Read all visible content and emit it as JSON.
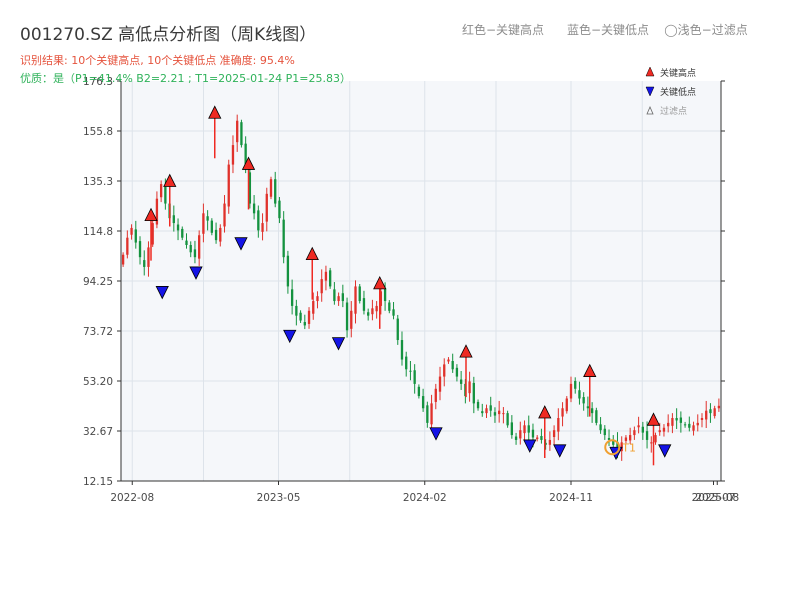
{
  "header": {
    "title": "001270.SZ 高低点分析图（周K线图）",
    "top_note": "红色−关键高点      蓝色−关键低点    ◯浅色−过滤点",
    "result_line": "识别结果: 10个关键高点, 10个关键低点   准确度: 95.4%",
    "quality_line": "优质：是（P1=41.4%  B2=2.21 ; T1=2025-01-24 P1=25.83）"
  },
  "legend": {
    "high": "关键高点",
    "low": "关键低点",
    "filtered": "过滤点",
    "position": "top-right"
  },
  "colors": {
    "up": "#e0312b",
    "down": "#14923f",
    "high_marker": "#ef2a23",
    "low_marker": "#1414e6",
    "filtered_marker": "#f0a030",
    "plot_bg": "#f5f7fa",
    "grid": "#dde3ea"
  },
  "chart_data": {
    "type": "candlestick",
    "title": "001270.SZ 高低点分析图（周K线图）",
    "y_ticks": [
      "176.3",
      "155.8",
      "135.3",
      "114.8",
      "94.25",
      "73.72",
      "53.20",
      "32.67",
      "12.15"
    ],
    "ylim": [
      12.15,
      176.3
    ],
    "x_ticks": [
      "2022-08",
      "2023-05",
      "2024-02",
      "2024-11",
      "2025-07",
      "2025-08"
    ],
    "x_range": [
      "2022-07-15",
      "2025-08-08"
    ],
    "grid": true,
    "closes": [
      105,
      112,
      116,
      110,
      104,
      100,
      108,
      118,
      128,
      134,
      126,
      120,
      118,
      115,
      112,
      109,
      106,
      104,
      113,
      122,
      119,
      114,
      111,
      116,
      126,
      142,
      150,
      160,
      150,
      140,
      126,
      122,
      115,
      118,
      130,
      136,
      126,
      120,
      104,
      92,
      84,
      80,
      78,
      76,
      82,
      86,
      88,
      95,
      98,
      92,
      86,
      88,
      86,
      74,
      82,
      92,
      86,
      82,
      80,
      83,
      84,
      90,
      86,
      82,
      80,
      70,
      62,
      58,
      57,
      52,
      47,
      42,
      36,
      44,
      50,
      55,
      60,
      62,
      58,
      55,
      52,
      47,
      53,
      44,
      42,
      40,
      42,
      41,
      39,
      41,
      40,
      35,
      31,
      29,
      33,
      35,
      32,
      30,
      30,
      29,
      27,
      29,
      33,
      38,
      42,
      46,
      52,
      50,
      46,
      44,
      42,
      40,
      36,
      33,
      31,
      29,
      27,
      25,
      28,
      30,
      31,
      33,
      35,
      32,
      29,
      28,
      31,
      33,
      34,
      36,
      38,
      37,
      36,
      35,
      34,
      35,
      36,
      38,
      41,
      40,
      42,
      43
    ],
    "key_highs": [
      {
        "date": "2022-09-09",
        "value": 119
      },
      {
        "date": "2022-10-14",
        "value": 133
      },
      {
        "date": "2023-01-06",
        "value": 161
      },
      {
        "date": "2023-03-10",
        "value": 140
      },
      {
        "date": "2023-07-07",
        "value": 103
      },
      {
        "date": "2023-11-10",
        "value": 91
      },
      {
        "date": "2024-04-19",
        "value": 63
      },
      {
        "date": "2024-09-13",
        "value": 38
      },
      {
        "date": "2024-12-06",
        "value": 55
      },
      {
        "date": "2025-04-04",
        "value": 35
      }
    ],
    "key_lows": [
      {
        "date": "2022-09-30",
        "value": 92
      },
      {
        "date": "2022-12-02",
        "value": 100
      },
      {
        "date": "2023-02-24",
        "value": 112
      },
      {
        "date": "2023-05-26",
        "value": 74
      },
      {
        "date": "2023-08-25",
        "value": 71
      },
      {
        "date": "2024-02-23",
        "value": 34
      },
      {
        "date": "2024-08-16",
        "value": 29
      },
      {
        "date": "2024-10-11",
        "value": 27
      },
      {
        "date": "2025-01-24",
        "value": 26
      },
      {
        "date": "2025-04-25",
        "value": 27
      }
    ],
    "filtered_points": [
      {
        "date": "2025-01-17",
        "value": 26,
        "label": "T1"
      }
    ]
  }
}
